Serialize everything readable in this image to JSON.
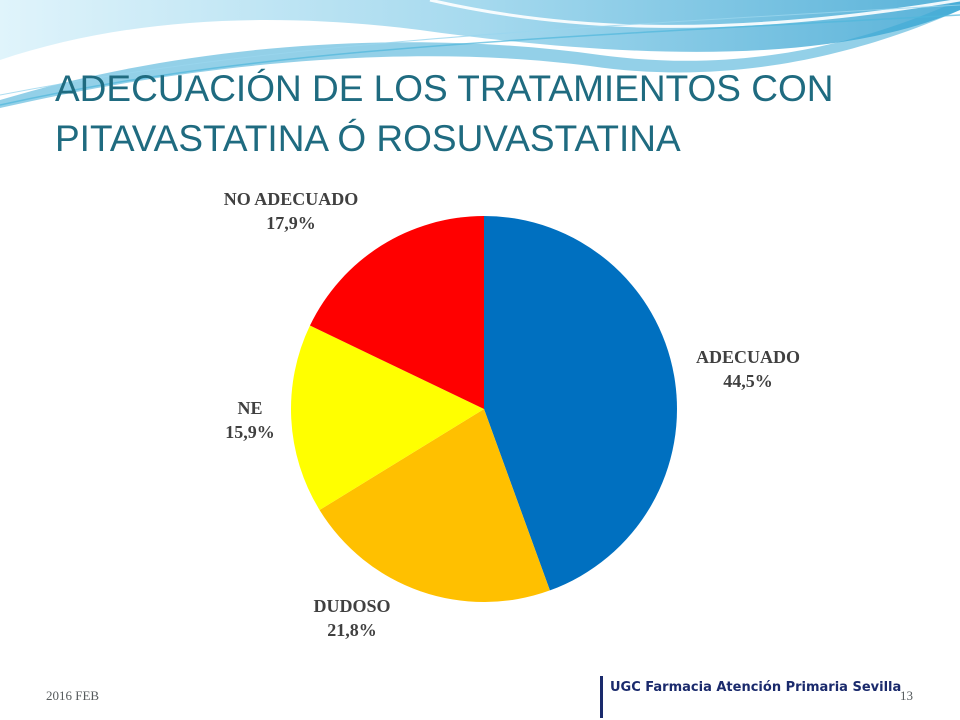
{
  "slide": {
    "title_lines": [
      "ADECUACIÓN DE LOS TRATAMIENTOS CON",
      "PITAVASTATINA Ó  ROSUVASTATINA"
    ]
  },
  "chart_data": {
    "type": "pie",
    "title": "",
    "slices": [
      {
        "label": "ADECUADO",
        "value": 44.5,
        "value_label": "44,5%",
        "color": "#0070c0"
      },
      {
        "label": "DUDOSO",
        "value": 21.8,
        "value_label": "21,8%",
        "color": "#ffc000"
      },
      {
        "label": "NE",
        "value": 15.9,
        "value_label": "15,9%",
        "color": "#ffff00"
      },
      {
        "label": "NO ADECUADO",
        "value": 17.9,
        "value_label": "17,9%",
        "color": "#ff0000"
      }
    ]
  },
  "footer": {
    "date": "2016 FEB",
    "organization": "UGC Farmacia Atención Primaria Sevilla",
    "page_number": "13"
  },
  "theme": {
    "title_color": "#1f6b80",
    "wave_colors": [
      "#8fd0ea",
      "#3aa9d6",
      "#c9ecf7"
    ]
  }
}
